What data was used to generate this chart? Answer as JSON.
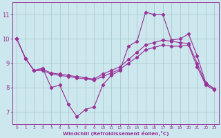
{
  "xlabel": "Windchill (Refroidissement éolien,°C)",
  "bg_color": "#cce8ee",
  "grid_color": "#aacccc",
  "line_color": "#993399",
  "spine_color": "#993399",
  "line1_y": [
    10.0,
    9.2,
    8.7,
    8.8,
    8.0,
    8.1,
    7.3,
    6.8,
    7.1,
    7.2,
    8.1,
    8.5,
    8.7,
    9.7,
    9.9,
    11.1,
    11.0,
    11.0,
    9.95,
    10.0,
    10.2,
    9.3,
    8.2,
    7.95
  ],
  "line2_y": [
    10.0,
    9.2,
    8.7,
    8.75,
    8.6,
    8.55,
    8.5,
    8.45,
    8.4,
    8.35,
    8.55,
    8.7,
    8.85,
    9.15,
    9.45,
    9.75,
    9.85,
    9.95,
    9.9,
    9.85,
    9.8,
    9.0,
    8.15,
    7.95
  ],
  "line3_y": [
    10.0,
    9.2,
    8.7,
    8.7,
    8.55,
    8.5,
    8.45,
    8.4,
    8.35,
    8.3,
    8.45,
    8.6,
    8.75,
    9.0,
    9.25,
    9.55,
    9.65,
    9.75,
    9.7,
    9.7,
    9.75,
    8.85,
    8.1,
    7.9
  ],
  "ylim": [
    6.5,
    11.5
  ],
  "xlim": [
    -0.5,
    23.5
  ],
  "ytick_labels": [
    "7",
    "8",
    "9",
    "10",
    "11"
  ],
  "yticks": [
    7,
    8,
    9,
    10,
    11
  ],
  "xticks": [
    0,
    1,
    2,
    3,
    4,
    5,
    6,
    7,
    8,
    9,
    10,
    11,
    12,
    13,
    14,
    15,
    16,
    17,
    18,
    19,
    20,
    21,
    22,
    23
  ]
}
